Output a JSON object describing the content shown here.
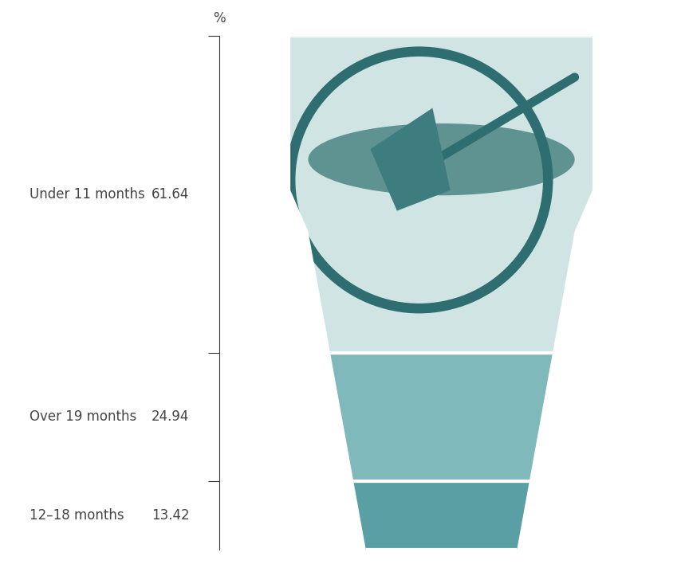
{
  "chart_data": {
    "type": "bar",
    "stacked": true,
    "data_labels": true,
    "tick_labels": false,
    "y_label": "%",
    "categories": [
      null
    ],
    "series": [
      {
        "name": "12–18 months",
        "color": "#5a9fa4",
        "values": [
          13.42
        ]
      },
      {
        "name": "Over 19 months",
        "color": "#80b9bc",
        "values": [
          24.94
        ]
      },
      {
        "name": "Under 11 months",
        "color": "#cfe4e3",
        "values": [
          61.64
        ]
      }
    ],
    "ylim": [
      0,
      100
    ],
    "yticks": [
      13.42,
      38.36,
      100
    ]
  }
}
